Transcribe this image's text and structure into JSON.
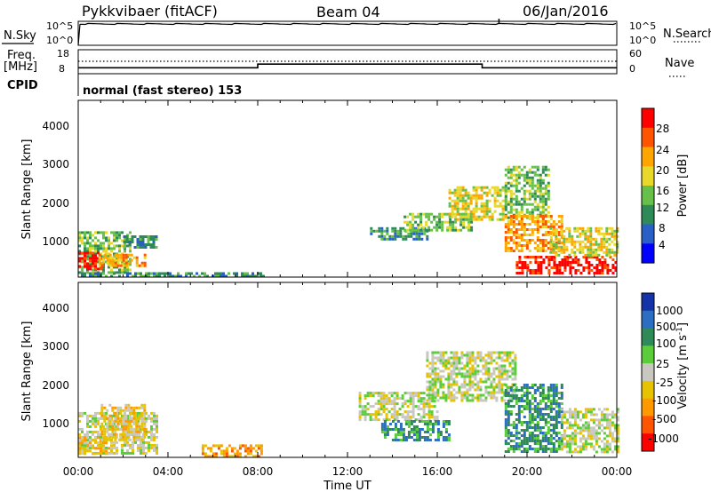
{
  "header": {
    "station": "Pykkvibaer (fitACF)",
    "beam": "Beam 04",
    "date": "06/Jan/2016"
  },
  "noise_panel": {
    "left_label": "N.Sky",
    "right_label": "N.Search",
    "left_ticks": [
      "10^5",
      "10^0"
    ],
    "right_ticks": [
      "10^5",
      "10^0"
    ]
  },
  "freq_panel": {
    "left_label_1": "Freq.",
    "left_label_2": "[MHz]",
    "left_ticks": [
      "18",
      "8"
    ],
    "right_label": "Nave",
    "right_ticks": [
      "60",
      "0"
    ],
    "cpid_label": "CPID",
    "cpid_text": "normal (fast stereo) 153"
  },
  "x_axis": {
    "label": "Time UT",
    "ticks": [
      "00:00",
      "04:00",
      "08:00",
      "12:00",
      "16:00",
      "20:00",
      "00:00"
    ]
  },
  "power_panel": {
    "ylabel": "Slant Range [km]",
    "yticks": [
      "1000",
      "2000",
      "3000",
      "4000"
    ],
    "colorbar_label": "Power [dB]",
    "colorbar_ticks": [
      "4",
      "8",
      "12",
      "16",
      "20",
      "24",
      "28"
    ],
    "colors": [
      "#0000ff",
      "#2a5fc8",
      "#2e8b57",
      "#66c04a",
      "#e8d82a",
      "#ffa500",
      "#ff5500",
      "#ff0000"
    ]
  },
  "velocity_panel": {
    "ylabel": "Slant Range [km]",
    "yticks": [
      "1000",
      "2000",
      "3000",
      "4000"
    ],
    "colorbar_label": "Velocity [m s^-1]",
    "colorbar_ticks": [
      "1000",
      "500",
      "100",
      "25",
      "-25",
      "-100",
      "-500",
      "-1000"
    ],
    "colors": [
      "#1533a8",
      "#2c6ec1",
      "#2e8b57",
      "#5ccd3a",
      "#c8c8c0",
      "#e6c200",
      "#ff9900",
      "#ff5500",
      "#ff0000"
    ]
  },
  "chart_data": [
    {
      "type": "line",
      "title": "",
      "xlabel": "",
      "ylabel": "N.Sky",
      "x": [
        "00:00",
        "04:00",
        "08:00",
        "12:00",
        "16:00",
        "20:00",
        "00:00"
      ],
      "series": [
        {
          "values": [
            200000,
            200000,
            200000,
            200000,
            200000,
            200000,
            200000
          ]
        }
      ],
      "ylim": [
        1,
        100000
      ],
      "yscale": "log"
    },
    {
      "type": "line",
      "title": "",
      "xlabel": "",
      "ylabel": "Freq. [MHz]",
      "x_hours": [
        0,
        8,
        8,
        18,
        18,
        24
      ],
      "series": [
        {
          "values": [
            10.5,
            10.5,
            12.0,
            12.0,
            10.5,
            10.5
          ]
        }
      ],
      "ylim": [
        8,
        18
      ],
      "y2label": "Nave",
      "y2lim": [
        0,
        60
      ]
    },
    {
      "type": "heatmap",
      "title": "",
      "xlabel": "Time UT",
      "ylabel": "Slant Range [km]",
      "x_range_hours": [
        0,
        24
      ],
      "ylim": [
        180,
        4500
      ],
      "colorbar": "Power [dB]",
      "colorbar_range": [
        0,
        30
      ],
      "regions": [
        {
          "t0": 0.0,
          "t1": 2.3,
          "r0": 300,
          "r1": 1300,
          "value": 12
        },
        {
          "t0": 0.0,
          "t1": 1.0,
          "r0": 350,
          "r1": 800,
          "value": 28
        },
        {
          "t0": 0.9,
          "t1": 3.0,
          "r0": 450,
          "r1": 750,
          "value": 22
        },
        {
          "t0": 2.0,
          "t1": 3.5,
          "r0": 900,
          "r1": 1200,
          "value": 8
        },
        {
          "t0": 0.0,
          "t1": 8.3,
          "r0": 180,
          "r1": 300,
          "value": 8
        },
        {
          "t0": 13.0,
          "t1": 15.5,
          "r0": 1100,
          "r1": 1400,
          "value": 8
        },
        {
          "t0": 14.5,
          "t1": 17.5,
          "r0": 1300,
          "r1": 1750,
          "value": 12
        },
        {
          "t0": 16.5,
          "t1": 19.0,
          "r0": 1600,
          "r1": 2400,
          "value": 16
        },
        {
          "t0": 19.0,
          "t1": 21.0,
          "r0": 1600,
          "r1": 2900,
          "value": 12
        },
        {
          "t0": 19.0,
          "t1": 21.5,
          "r0": 800,
          "r1": 1700,
          "value": 22
        },
        {
          "t0": 19.5,
          "t1": 24.0,
          "r0": 300,
          "r1": 700,
          "value": 28
        },
        {
          "t0": 21.0,
          "t1": 24.0,
          "r0": 700,
          "r1": 1400,
          "value": 16
        }
      ]
    },
    {
      "type": "heatmap",
      "title": "",
      "xlabel": "Time UT",
      "ylabel": "Slant Range [km]",
      "x_range_hours": [
        0,
        24
      ],
      "ylim": [
        180,
        4500
      ],
      "colorbar": "Velocity [m s^-1]",
      "colorbar_range": [
        -1000,
        1000
      ],
      "regions": [
        {
          "t0": 0.0,
          "t1": 3.5,
          "r0": 300,
          "r1": 1300,
          "value": 0
        },
        {
          "t0": 0.0,
          "t1": 1.5,
          "r0": 300,
          "r1": 700,
          "value": -80
        },
        {
          "t0": 1.0,
          "t1": 3.0,
          "r0": 600,
          "r1": 1500,
          "value": -60
        },
        {
          "t0": 5.5,
          "t1": 8.2,
          "r0": 200,
          "r1": 500,
          "value": -150
        },
        {
          "t0": 12.5,
          "t1": 16.0,
          "r0": 1100,
          "r1": 1800,
          "value": 0
        },
        {
          "t0": 15.5,
          "t1": 19.5,
          "r0": 1600,
          "r1": 2800,
          "value": 0
        },
        {
          "t0": 13.5,
          "t1": 16.5,
          "r0": 600,
          "r1": 1100,
          "value": 100
        },
        {
          "t0": 19.0,
          "t1": 21.5,
          "r0": 300,
          "r1": 2000,
          "value": 300
        },
        {
          "t0": 21.5,
          "t1": 24.0,
          "r0": 300,
          "r1": 1400,
          "value": 0
        }
      ]
    }
  ]
}
